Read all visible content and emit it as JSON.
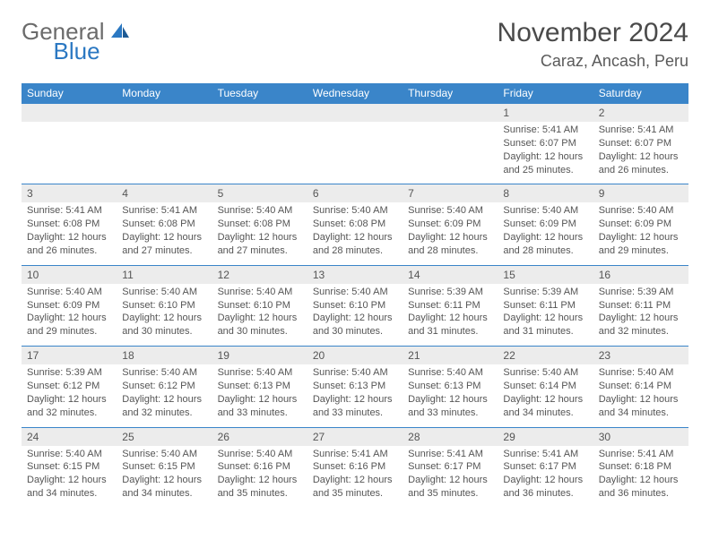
{
  "logo": {
    "general": "General",
    "blue": "Blue"
  },
  "title": "November 2024",
  "location": "Caraz, Ancash, Peru",
  "colors": {
    "header_bg": "#3a85c9",
    "header_text": "#ffffff",
    "daynum_bg": "#ececec",
    "border": "#3a85c9",
    "logo_blue": "#2b78c2",
    "text": "#555555"
  },
  "weekdays": [
    "Sunday",
    "Monday",
    "Tuesday",
    "Wednesday",
    "Thursday",
    "Friday",
    "Saturday"
  ],
  "weeks": [
    [
      null,
      null,
      null,
      null,
      null,
      {
        "n": "1",
        "sr": "Sunrise: 5:41 AM",
        "ss": "Sunset: 6:07 PM",
        "d1": "Daylight: 12 hours",
        "d2": "and 25 minutes."
      },
      {
        "n": "2",
        "sr": "Sunrise: 5:41 AM",
        "ss": "Sunset: 6:07 PM",
        "d1": "Daylight: 12 hours",
        "d2": "and 26 minutes."
      }
    ],
    [
      {
        "n": "3",
        "sr": "Sunrise: 5:41 AM",
        "ss": "Sunset: 6:08 PM",
        "d1": "Daylight: 12 hours",
        "d2": "and 26 minutes."
      },
      {
        "n": "4",
        "sr": "Sunrise: 5:41 AM",
        "ss": "Sunset: 6:08 PM",
        "d1": "Daylight: 12 hours",
        "d2": "and 27 minutes."
      },
      {
        "n": "5",
        "sr": "Sunrise: 5:40 AM",
        "ss": "Sunset: 6:08 PM",
        "d1": "Daylight: 12 hours",
        "d2": "and 27 minutes."
      },
      {
        "n": "6",
        "sr": "Sunrise: 5:40 AM",
        "ss": "Sunset: 6:08 PM",
        "d1": "Daylight: 12 hours",
        "d2": "and 28 minutes."
      },
      {
        "n": "7",
        "sr": "Sunrise: 5:40 AM",
        "ss": "Sunset: 6:09 PM",
        "d1": "Daylight: 12 hours",
        "d2": "and 28 minutes."
      },
      {
        "n": "8",
        "sr": "Sunrise: 5:40 AM",
        "ss": "Sunset: 6:09 PM",
        "d1": "Daylight: 12 hours",
        "d2": "and 28 minutes."
      },
      {
        "n": "9",
        "sr": "Sunrise: 5:40 AM",
        "ss": "Sunset: 6:09 PM",
        "d1": "Daylight: 12 hours",
        "d2": "and 29 minutes."
      }
    ],
    [
      {
        "n": "10",
        "sr": "Sunrise: 5:40 AM",
        "ss": "Sunset: 6:09 PM",
        "d1": "Daylight: 12 hours",
        "d2": "and 29 minutes."
      },
      {
        "n": "11",
        "sr": "Sunrise: 5:40 AM",
        "ss": "Sunset: 6:10 PM",
        "d1": "Daylight: 12 hours",
        "d2": "and 30 minutes."
      },
      {
        "n": "12",
        "sr": "Sunrise: 5:40 AM",
        "ss": "Sunset: 6:10 PM",
        "d1": "Daylight: 12 hours",
        "d2": "and 30 minutes."
      },
      {
        "n": "13",
        "sr": "Sunrise: 5:40 AM",
        "ss": "Sunset: 6:10 PM",
        "d1": "Daylight: 12 hours",
        "d2": "and 30 minutes."
      },
      {
        "n": "14",
        "sr": "Sunrise: 5:39 AM",
        "ss": "Sunset: 6:11 PM",
        "d1": "Daylight: 12 hours",
        "d2": "and 31 minutes."
      },
      {
        "n": "15",
        "sr": "Sunrise: 5:39 AM",
        "ss": "Sunset: 6:11 PM",
        "d1": "Daylight: 12 hours",
        "d2": "and 31 minutes."
      },
      {
        "n": "16",
        "sr": "Sunrise: 5:39 AM",
        "ss": "Sunset: 6:11 PM",
        "d1": "Daylight: 12 hours",
        "d2": "and 32 minutes."
      }
    ],
    [
      {
        "n": "17",
        "sr": "Sunrise: 5:39 AM",
        "ss": "Sunset: 6:12 PM",
        "d1": "Daylight: 12 hours",
        "d2": "and 32 minutes."
      },
      {
        "n": "18",
        "sr": "Sunrise: 5:40 AM",
        "ss": "Sunset: 6:12 PM",
        "d1": "Daylight: 12 hours",
        "d2": "and 32 minutes."
      },
      {
        "n": "19",
        "sr": "Sunrise: 5:40 AM",
        "ss": "Sunset: 6:13 PM",
        "d1": "Daylight: 12 hours",
        "d2": "and 33 minutes."
      },
      {
        "n": "20",
        "sr": "Sunrise: 5:40 AM",
        "ss": "Sunset: 6:13 PM",
        "d1": "Daylight: 12 hours",
        "d2": "and 33 minutes."
      },
      {
        "n": "21",
        "sr": "Sunrise: 5:40 AM",
        "ss": "Sunset: 6:13 PM",
        "d1": "Daylight: 12 hours",
        "d2": "and 33 minutes."
      },
      {
        "n": "22",
        "sr": "Sunrise: 5:40 AM",
        "ss": "Sunset: 6:14 PM",
        "d1": "Daylight: 12 hours",
        "d2": "and 34 minutes."
      },
      {
        "n": "23",
        "sr": "Sunrise: 5:40 AM",
        "ss": "Sunset: 6:14 PM",
        "d1": "Daylight: 12 hours",
        "d2": "and 34 minutes."
      }
    ],
    [
      {
        "n": "24",
        "sr": "Sunrise: 5:40 AM",
        "ss": "Sunset: 6:15 PM",
        "d1": "Daylight: 12 hours",
        "d2": "and 34 minutes."
      },
      {
        "n": "25",
        "sr": "Sunrise: 5:40 AM",
        "ss": "Sunset: 6:15 PM",
        "d1": "Daylight: 12 hours",
        "d2": "and 34 minutes."
      },
      {
        "n": "26",
        "sr": "Sunrise: 5:40 AM",
        "ss": "Sunset: 6:16 PM",
        "d1": "Daylight: 12 hours",
        "d2": "and 35 minutes."
      },
      {
        "n": "27",
        "sr": "Sunrise: 5:41 AM",
        "ss": "Sunset: 6:16 PM",
        "d1": "Daylight: 12 hours",
        "d2": "and 35 minutes."
      },
      {
        "n": "28",
        "sr": "Sunrise: 5:41 AM",
        "ss": "Sunset: 6:17 PM",
        "d1": "Daylight: 12 hours",
        "d2": "and 35 minutes."
      },
      {
        "n": "29",
        "sr": "Sunrise: 5:41 AM",
        "ss": "Sunset: 6:17 PM",
        "d1": "Daylight: 12 hours",
        "d2": "and 36 minutes."
      },
      {
        "n": "30",
        "sr": "Sunrise: 5:41 AM",
        "ss": "Sunset: 6:18 PM",
        "d1": "Daylight: 12 hours",
        "d2": "and 36 minutes."
      }
    ]
  ]
}
